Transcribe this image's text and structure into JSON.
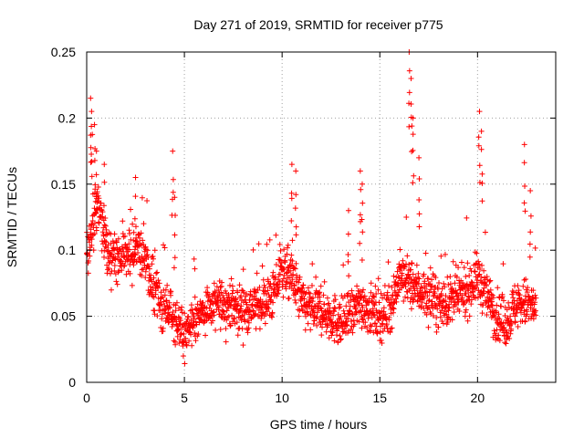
{
  "chart_data": {
    "type": "scatter",
    "title": "Day 271 of 2019, SRMTID for receiver p775",
    "xlabel": "GPS time / hours",
    "ylabel": "SRMTID / TECUs",
    "xlim": [
      0,
      24
    ],
    "ylim": [
      0,
      0.25
    ],
    "x_ticks": [
      0,
      5,
      10,
      15,
      20
    ],
    "x_tick_labels": [
      "0",
      "5",
      "10",
      "15",
      "20"
    ],
    "y_ticks": [
      0,
      0.05,
      0.1,
      0.15,
      0.2,
      0.25
    ],
    "y_tick_labels": [
      "0",
      "0.05",
      "0.1",
      "0.15",
      "0.2",
      "0.25"
    ],
    "grid": true,
    "marker": "+",
    "color": "#ff0000",
    "series": [
      {
        "name": "SRMTID",
        "profile_x": [
          0.0,
          0.3,
          0.6,
          1.0,
          1.5,
          2.0,
          2.5,
          3.0,
          3.5,
          4.0,
          4.5,
          5.0,
          5.5,
          6.0,
          7.0,
          8.0,
          9.0,
          9.5,
          10.0,
          10.5,
          11.0,
          11.5,
          12.0,
          12.5,
          13.0,
          13.5,
          14.0,
          14.5,
          15.0,
          15.5,
          16.0,
          16.5,
          17.0,
          17.5,
          18.0,
          18.5,
          19.0,
          19.5,
          20.0,
          20.5,
          21.0,
          21.5,
          22.0,
          22.5,
          23.0
        ],
        "profile_y": [
          0.095,
          0.12,
          0.14,
          0.105,
          0.09,
          0.1,
          0.1,
          0.095,
          0.065,
          0.055,
          0.05,
          0.035,
          0.045,
          0.055,
          0.06,
          0.055,
          0.06,
          0.065,
          0.085,
          0.08,
          0.06,
          0.055,
          0.055,
          0.05,
          0.045,
          0.05,
          0.06,
          0.055,
          0.05,
          0.055,
          0.08,
          0.075,
          0.07,
          0.065,
          0.06,
          0.06,
          0.065,
          0.07,
          0.08,
          0.065,
          0.05,
          0.045,
          0.06,
          0.06,
          0.055
        ],
        "spikes": [
          {
            "x": 0.2,
            "y": 0.215
          },
          {
            "x": 0.25,
            "y": 0.205
          },
          {
            "x": 0.4,
            "y": 0.195
          },
          {
            "x": 0.5,
            "y": 0.175
          },
          {
            "x": 0.9,
            "y": 0.165
          },
          {
            "x": 2.5,
            "y": 0.155
          },
          {
            "x": 4.4,
            "y": 0.175
          },
          {
            "x": 4.5,
            "y": 0.14
          },
          {
            "x": 10.5,
            "y": 0.165
          },
          {
            "x": 10.7,
            "y": 0.16
          },
          {
            "x": 13.4,
            "y": 0.13
          },
          {
            "x": 14.0,
            "y": 0.16
          },
          {
            "x": 14.1,
            "y": 0.15
          },
          {
            "x": 16.5,
            "y": 0.25
          },
          {
            "x": 16.6,
            "y": 0.23
          },
          {
            "x": 16.7,
            "y": 0.2
          },
          {
            "x": 17.0,
            "y": 0.17
          },
          {
            "x": 20.1,
            "y": 0.205
          },
          {
            "x": 20.2,
            "y": 0.19
          },
          {
            "x": 22.4,
            "y": 0.18
          },
          {
            "x": 22.7,
            "y": 0.145
          }
        ]
      }
    ]
  }
}
